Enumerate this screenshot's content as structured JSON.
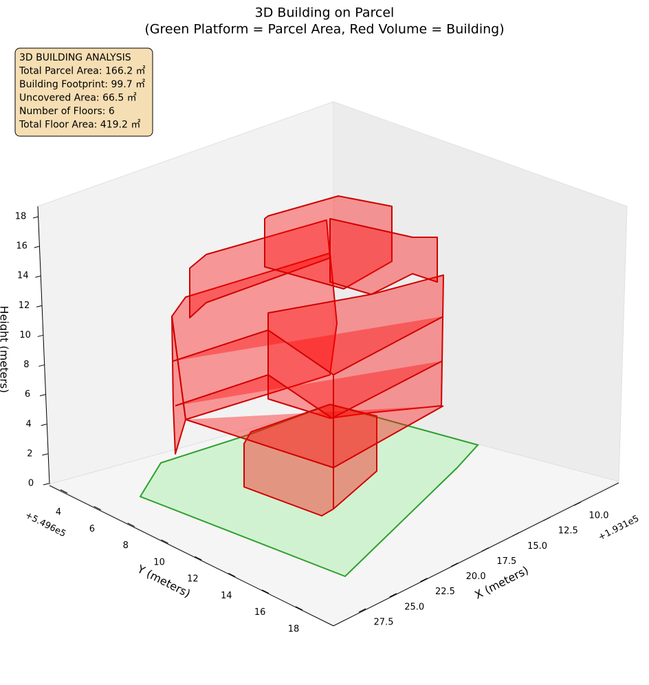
{
  "chart_data": {
    "type": "3d-building",
    "title": "3D Building on Parcel",
    "subtitle": "(Green Platform = Parcel Area, Red Volume = Building)",
    "xlabel": "X (meters)",
    "ylabel": "Y (meters)",
    "zlabel": "Height (meters)",
    "x_offset": "+1.931e5",
    "y_offset": "+5.496e5",
    "xlim": [
      10,
      27.5
    ],
    "xticks": [
      {
        "value": 10,
        "label": "10.0"
      },
      {
        "value": 12.5,
        "label": "12.5"
      },
      {
        "value": 15,
        "label": "15.0"
      },
      {
        "value": 17.5,
        "label": "17.5"
      },
      {
        "value": 20,
        "label": "20.0"
      },
      {
        "value": 22.5,
        "label": "22.5"
      },
      {
        "value": 25,
        "label": "25.0"
      },
      {
        "value": 27.5,
        "label": "27.5"
      }
    ],
    "ylim": [
      4,
      18
    ],
    "yticks": [
      4,
      6,
      8,
      10,
      12,
      14,
      16,
      18
    ],
    "zlim": [
      0,
      18
    ],
    "zticks": [
      0,
      2,
      4,
      6,
      8,
      10,
      12,
      14,
      16,
      18
    ],
    "info_box": [
      "3D BUILDING ANALYSIS",
      "Total Parcel Area: 166.2 ㎡",
      "Building Footprint: 99.7 ㎡",
      "Uncovered Area: 66.5 ㎡",
      "Number of Floors: 6",
      "Total Floor Area: 419.2 ㎡"
    ]
  }
}
